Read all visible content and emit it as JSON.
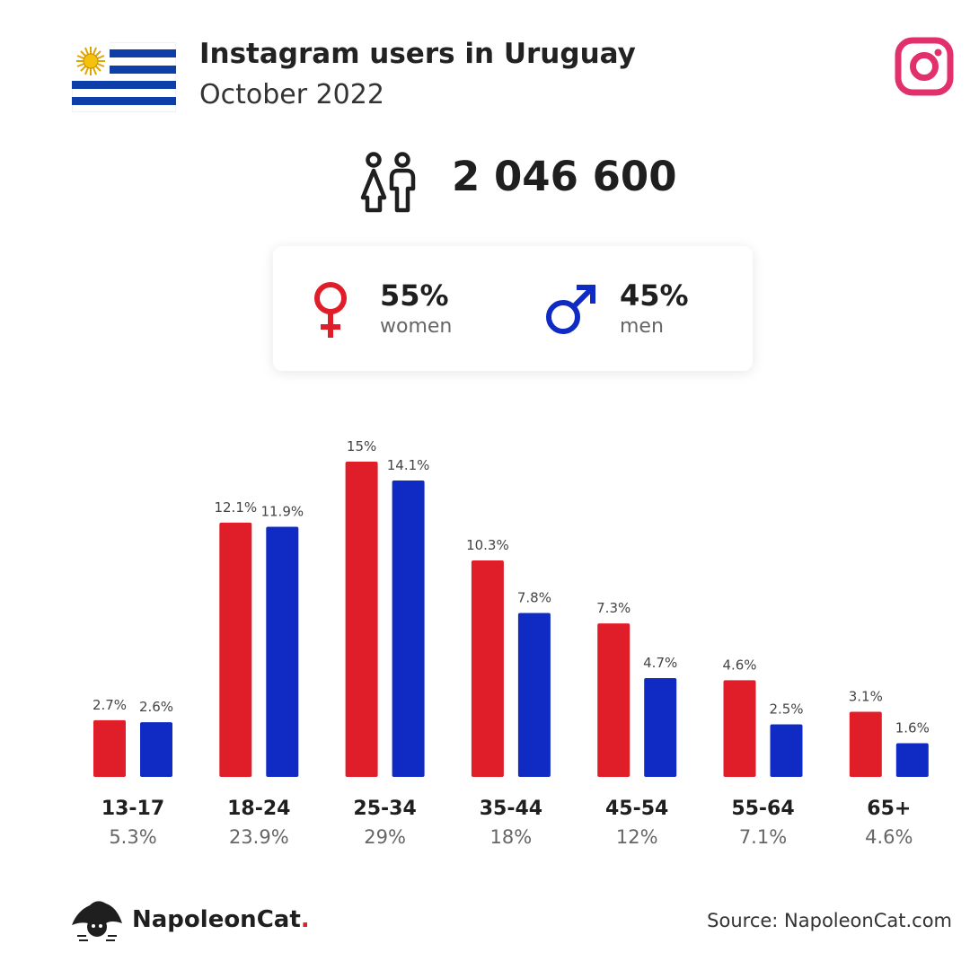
{
  "header": {
    "title": "Instagram users in Uruguay",
    "subtitle": "October 2022"
  },
  "totals": {
    "users": "2 046 600"
  },
  "gender": {
    "women_pct": "55%",
    "women_label": "women",
    "men_pct": "45%",
    "men_label": "men"
  },
  "colors": {
    "women": "#e01e2a",
    "men": "#0f2bc4",
    "instagram": "#e1306c"
  },
  "chart_data": {
    "type": "bar",
    "categories": [
      "13-17",
      "18-24",
      "25-34",
      "35-44",
      "45-54",
      "55-64",
      "65+"
    ],
    "category_totals": [
      "5.3%",
      "23.9%",
      "29%",
      "18%",
      "12%",
      "7.1%",
      "4.6%"
    ],
    "series": [
      {
        "values": [
          2.7,
          12.1,
          15,
          10.3,
          7.3,
          4.6,
          3.1
        ],
        "labels": [
          "2.7%",
          "12.1%",
          "15%",
          "10.3%",
          "7.3%",
          "4.6%",
          "3.1%"
        ]
      },
      {
        "values": [
          2.6,
          11.9,
          14.1,
          7.8,
          4.7,
          2.5,
          1.6
        ],
        "labels": [
          "2.6%",
          "11.9%",
          "14.1%",
          "7.8%",
          "4.7%",
          "2.5%",
          "1.6%"
        ]
      }
    ],
    "ylim": [
      0,
      15
    ],
    "grid": false,
    "legend": "none"
  },
  "footer": {
    "brand_name": "NapoleonCat",
    "brand_dot": ".",
    "source": "Source: NapoleonCat.com"
  }
}
